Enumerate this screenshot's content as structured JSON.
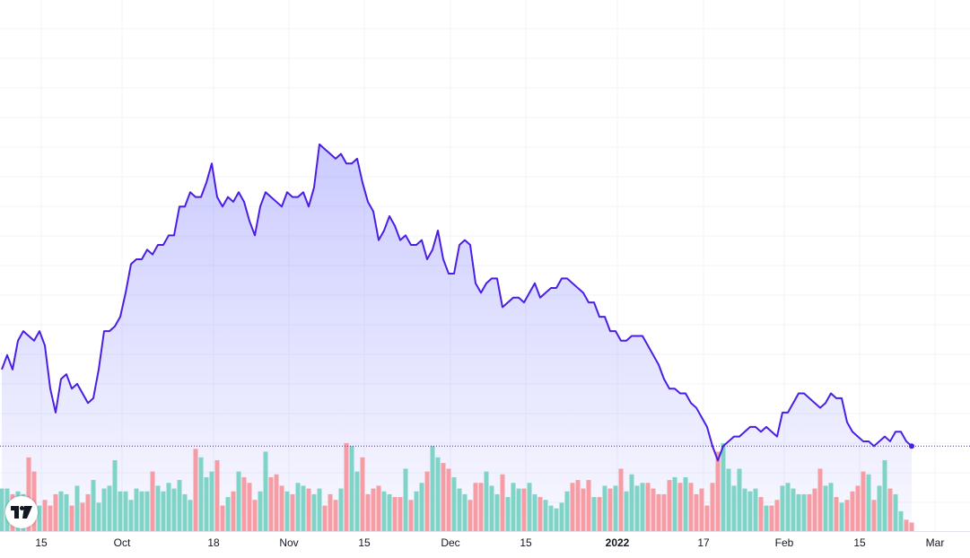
{
  "chart_data": {
    "type": "area",
    "price_range": [
      0,
      100
    ],
    "volume_range": [
      0,
      100
    ],
    "x_ticks": [
      {
        "label": "15",
        "index": 4,
        "bold": false
      },
      {
        "label": "Oct",
        "index": 19,
        "bold": false
      },
      {
        "label": "18",
        "index": 36,
        "bold": false
      },
      {
        "label": "Nov",
        "index": 50,
        "bold": false
      },
      {
        "label": "15",
        "index": 64,
        "bold": false
      },
      {
        "label": "Dec",
        "index": 80,
        "bold": false
      },
      {
        "label": "15",
        "index": 94,
        "bold": false
      },
      {
        "label": "2022",
        "index": 111,
        "bold": true
      },
      {
        "label": "17",
        "index": 127,
        "bold": false
      },
      {
        "label": "Feb",
        "index": 142,
        "bold": false
      },
      {
        "label": "15",
        "index": 156,
        "bold": false
      },
      {
        "label": "Mar",
        "index": 170,
        "bold": false
      }
    ],
    "price": [
      24,
      27,
      24,
      30,
      32,
      31,
      30,
      32,
      29,
      20,
      15,
      22,
      23,
      20,
      21,
      19,
      17,
      18,
      24,
      32,
      32,
      33,
      35,
      40,
      46,
      47,
      47,
      49,
      48,
      50,
      50,
      52,
      52,
      58,
      58,
      61,
      60,
      60,
      63,
      67,
      60,
      58,
      60,
      59,
      61,
      59,
      55,
      52,
      58,
      61,
      60,
      59,
      58,
      61,
      60,
      60,
      61,
      58,
      62,
      71,
      70,
      69,
      68,
      69,
      67,
      67,
      68,
      63,
      59,
      57,
      51,
      53,
      56,
      54,
      51,
      52,
      50,
      50,
      51,
      47,
      49,
      53,
      47,
      44,
      44,
      50,
      51,
      50,
      42,
      40,
      42,
      43,
      43,
      37,
      38,
      39,
      39,
      38,
      40,
      42,
      39,
      40,
      41,
      41,
      43,
      43,
      42,
      41,
      40,
      38,
      38,
      35,
      35,
      32,
      32,
      30,
      30,
      31,
      31,
      31,
      29,
      27,
      25,
      22,
      20,
      20,
      19,
      19,
      17,
      16,
      14,
      12,
      8,
      5,
      8,
      9,
      10,
      10,
      11,
      12,
      12,
      11,
      12,
      11,
      10,
      15,
      15,
      17,
      19,
      19,
      18,
      17,
      16,
      17,
      19,
      18,
      18,
      13,
      11,
      10,
      9,
      9,
      8,
      9,
      10,
      9,
      11,
      11,
      9,
      8
    ],
    "volume": [
      15,
      15,
      13,
      14,
      13,
      26,
      21,
      9,
      11,
      9,
      13,
      14,
      13,
      9,
      16,
      10,
      13,
      18,
      10,
      15,
      16,
      25,
      14,
      14,
      11,
      15,
      14,
      14,
      21,
      16,
      14,
      17,
      15,
      18,
      13,
      11,
      29,
      26,
      19,
      21,
      25,
      9,
      12,
      14,
      21,
      19,
      17,
      11,
      14,
      28,
      19,
      20,
      16,
      14,
      13,
      17,
      16,
      15,
      13,
      15,
      9,
      13,
      11,
      15,
      31,
      30,
      21,
      26,
      13,
      15,
      16,
      14,
      13,
      12,
      12,
      22,
      11,
      14,
      17,
      21,
      30,
      26,
      24,
      22,
      19,
      15,
      13,
      11,
      17,
      17,
      21,
      16,
      13,
      20,
      12,
      17,
      15,
      15,
      17,
      13,
      12,
      11,
      9,
      8,
      10,
      14,
      17,
      18,
      15,
      18,
      12,
      12,
      16,
      15,
      16,
      22,
      14,
      20,
      16,
      17,
      17,
      15,
      13,
      13,
      18,
      19,
      17,
      19,
      17,
      13,
      15,
      9,
      17,
      28,
      31,
      22,
      16,
      22,
      15,
      14,
      15,
      12,
      9,
      9,
      11,
      16,
      17,
      15,
      13,
      13,
      13,
      15,
      22,
      16,
      17,
      12,
      10,
      11,
      14,
      16,
      21,
      20,
      11,
      16,
      25,
      15,
      13,
      7,
      4,
      3
    ]
  },
  "logo": {
    "label": "TradingView"
  },
  "colors": {
    "line": "#4b1ee3",
    "area_top": "rgba(94,94,255,0.32)",
    "area_bottom": "rgba(94,94,255,0.04)",
    "volume_up": "#7fd4c7",
    "volume_down": "#f59ca5",
    "grid": "#f0f3fa",
    "baseline": "#5b1ad6",
    "text": "#131722"
  }
}
